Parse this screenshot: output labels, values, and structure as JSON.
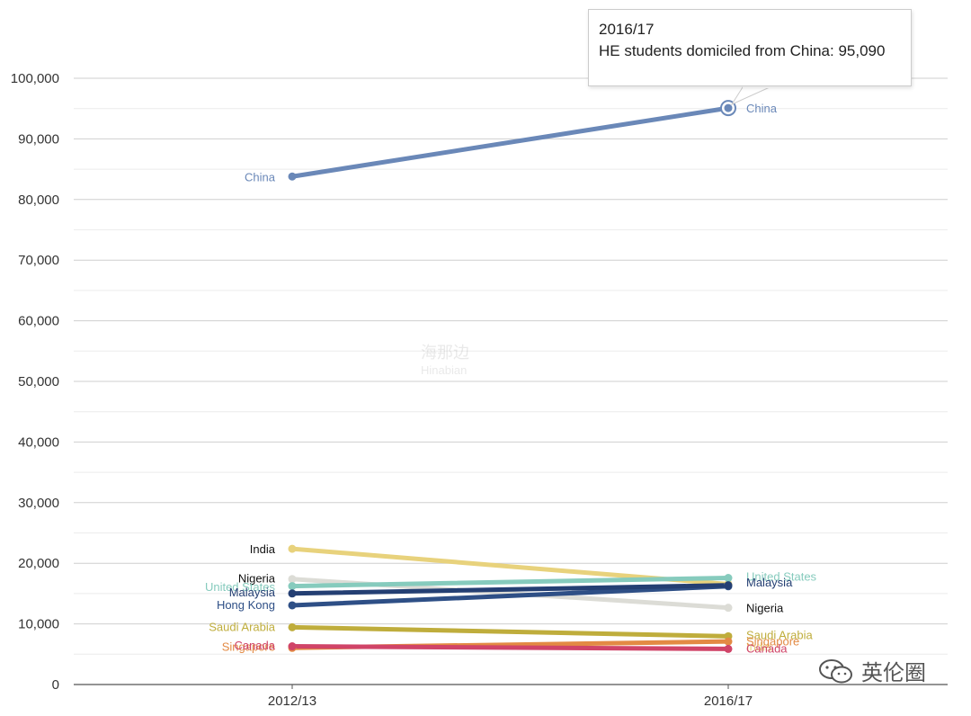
{
  "chart_data": {
    "type": "line",
    "x": [
      "2012/13",
      "2016/17"
    ],
    "ylim": [
      0,
      100000
    ],
    "yticks": [
      0,
      10000,
      20000,
      30000,
      40000,
      50000,
      60000,
      70000,
      80000,
      90000,
      100000
    ],
    "ytick_labels": [
      "0",
      "10,000",
      "20,000",
      "30,000",
      "40,000",
      "50,000",
      "60,000",
      "70,000",
      "80,000",
      "90,000",
      "100,000"
    ],
    "grid": true,
    "series": [
      {
        "name": "China",
        "values": [
          83790,
          95090
        ],
        "color": "#6a88b8"
      },
      {
        "name": "India",
        "values": [
          22385,
          16550
        ],
        "color": "#e8d27c"
      },
      {
        "name": "Nigeria",
        "values": [
          17395,
          12665
        ],
        "color": "#dcdcd6"
      },
      {
        "name": "United States",
        "values": [
          16235,
          17580
        ],
        "color": "#86cbbd"
      },
      {
        "name": "Malaysia",
        "values": [
          15015,
          16370
        ],
        "color": "#243f73"
      },
      {
        "name": "Hong Kong",
        "values": [
          13065,
          16200
        ],
        "color": "#2e4f86"
      },
      {
        "name": "Saudi Arabia",
        "values": [
          9440,
          7960
        ],
        "color": "#bfad3c"
      },
      {
        "name": "Singapore",
        "values": [
          6045,
          7100
        ],
        "color": "#e38a44"
      },
      {
        "name": "Canada",
        "values": [
          6300,
          5870
        ],
        "color": "#d04468"
      }
    ],
    "labels_left": [
      {
        "text": "China",
        "series": 0,
        "y": 83790
      },
      {
        "text": "India",
        "series": 1,
        "y": 22385
      },
      {
        "text": "Nigeria",
        "series": 2,
        "y": 17600
      },
      {
        "text": "United States",
        "series": 3,
        "y": 16200
      },
      {
        "text": "Malaysia",
        "series": 4,
        "y": 15300
      },
      {
        "text": "Hong Kong",
        "series": 5,
        "y": 13200
      },
      {
        "text": "Saudi Arabia",
        "series": 6,
        "y": 9600
      },
      {
        "text": "Singapore",
        "series": 7,
        "y": 6300
      },
      {
        "text": "Canada",
        "series": 8,
        "y": 6500
      }
    ],
    "labels_right": [
      {
        "text": "China",
        "series": 0,
        "y": 95090
      },
      {
        "text": "United States",
        "series": 3,
        "y": 17900
      },
      {
        "text": "Malaysia",
        "series": 4,
        "y": 16900
      },
      {
        "text": "Nigeria",
        "series": 2,
        "y": 12665
      },
      {
        "text": "Saudi Arabia",
        "series": 6,
        "y": 8200
      },
      {
        "text": "India",
        "series": 1,
        "y": 6300
      },
      {
        "text": "Singapore",
        "series": 7,
        "y": 7200
      },
      {
        "text": "Canada",
        "series": 8,
        "y": 6000
      }
    ],
    "tooltip": {
      "x_label": "2016/17",
      "text": "HE students domiciled from China: 95,090",
      "series": 0
    }
  },
  "watermark": {
    "text": "英伦圈",
    "faint_text_top": "海那边",
    "faint_text_bottom": "Hinabian"
  }
}
